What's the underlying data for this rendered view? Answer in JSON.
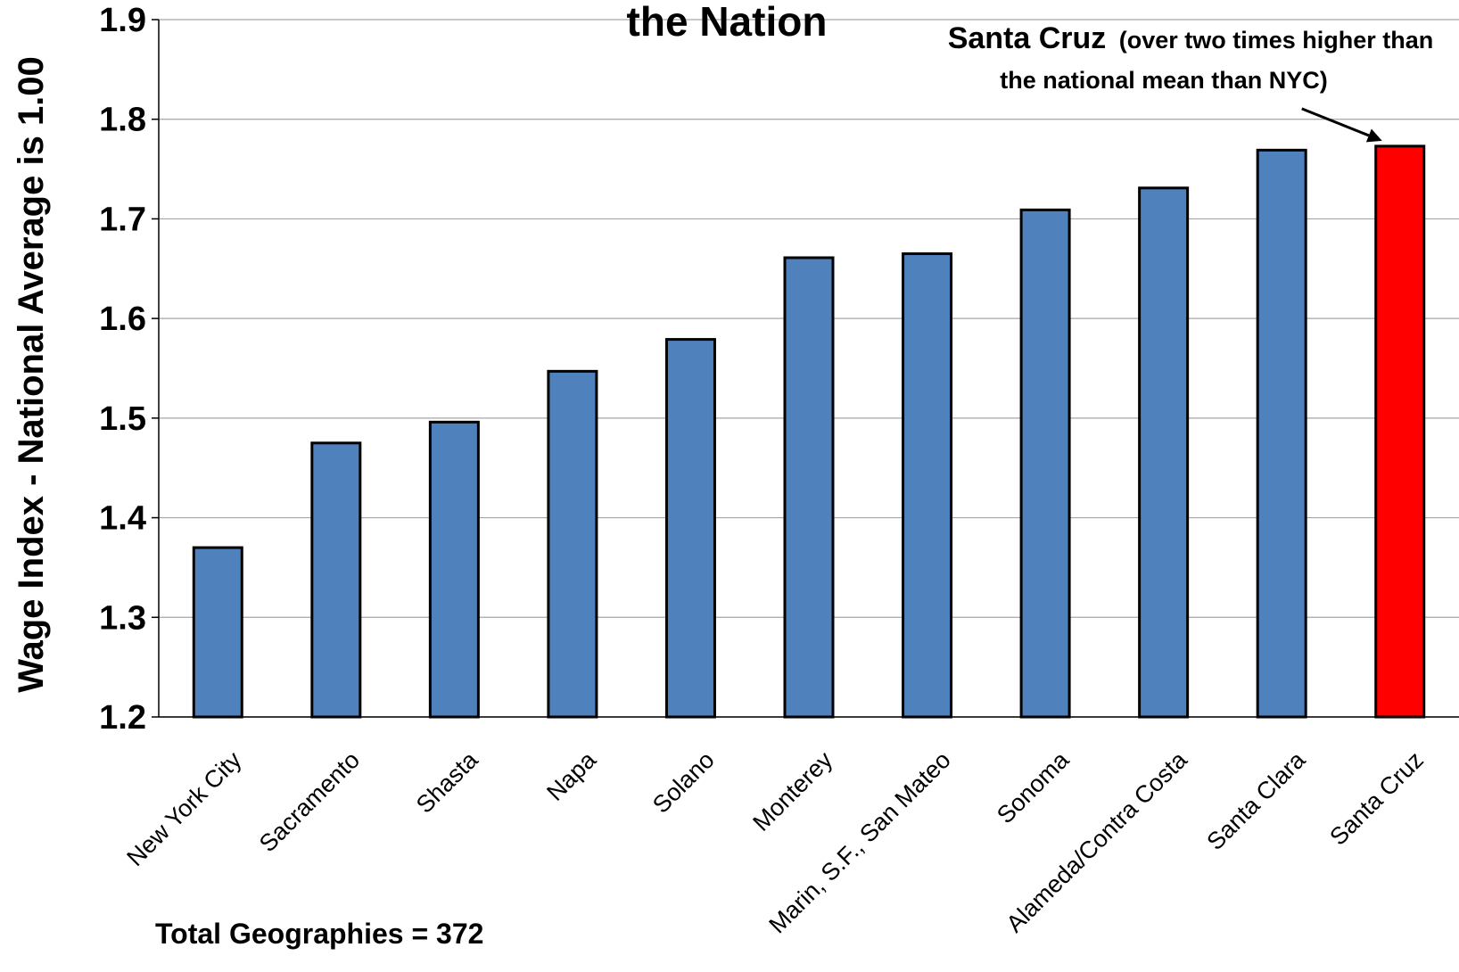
{
  "chart_data": {
    "type": "bar",
    "title": "the Nation",
    "xlabel": "",
    "ylabel": "Wage Index - National Average is 1.00",
    "ylim": [
      1.2,
      1.9
    ],
    "yticks": [
      "1.2",
      "1.3",
      "1.4",
      "1.5",
      "1.6",
      "1.7",
      "1.8",
      "1.9"
    ],
    "grid": true,
    "categories": [
      "New York City",
      "Sacramento",
      "Shasta",
      "Napa",
      "Solano",
      "Monterey",
      "Marin, S.F., San Mateo",
      "Sonoma",
      "Alameda/Contra Costa",
      "Santa Clara",
      "Santa Cruz"
    ],
    "values": [
      1.37,
      1.475,
      1.496,
      1.547,
      1.579,
      1.661,
      1.665,
      1.709,
      1.731,
      1.769,
      1.773
    ],
    "highlight_index": 10,
    "colors": {
      "bar": "#4f81bd",
      "highlight": "#ff0000",
      "outline": "#000000",
      "grid": "#a6a6a6"
    },
    "annotation": {
      "strong": "Santa Cruz",
      "line1_rest": "(over two times higher than",
      "line2": "the national mean than NYC)",
      "target": "Santa Cruz"
    },
    "footnote": "Total Geographies = 372"
  }
}
